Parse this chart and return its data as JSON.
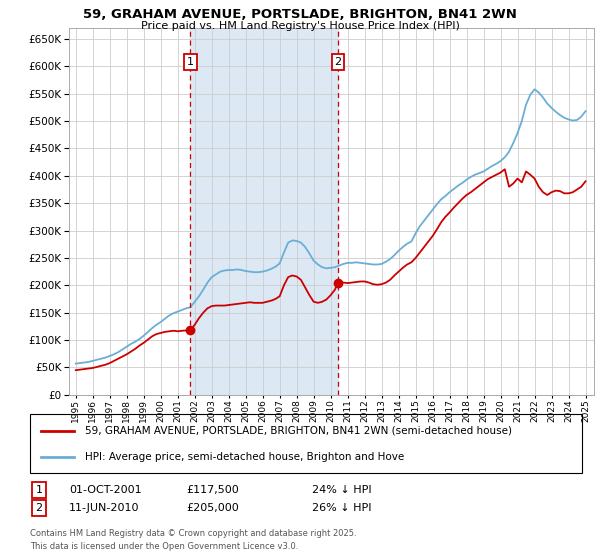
{
  "title1": "59, GRAHAM AVENUE, PORTSLADE, BRIGHTON, BN41 2WN",
  "title2": "Price paid vs. HM Land Registry's House Price Index (HPI)",
  "legend_line1": "59, GRAHAM AVENUE, PORTSLADE, BRIGHTON, BN41 2WN (semi-detached house)",
  "legend_line2": "HPI: Average price, semi-detached house, Brighton and Hove",
  "footnote1": "Contains HM Land Registry data © Crown copyright and database right 2025.",
  "footnote2": "This data is licensed under the Open Government Licence v3.0.",
  "annotation1_label": "1",
  "annotation1_date": "01-OCT-2001",
  "annotation1_price": "£117,500",
  "annotation1_text": "24% ↓ HPI",
  "annotation2_label": "2",
  "annotation2_date": "11-JUN-2010",
  "annotation2_price": "£205,000",
  "annotation2_text": "26% ↓ HPI",
  "vline1_x": 2001.75,
  "vline2_x": 2010.44,
  "marker1_x": 2001.75,
  "marker1_y": 117500,
  "marker2_x": 2010.44,
  "marker2_y": 205000,
  "hpi_color": "#6aaed6",
  "price_color": "#cc0000",
  "vline_color": "#cc0000",
  "span_color": "#dce9f5",
  "plot_bg": "#ffffff",
  "grid_color": "#cccccc",
  "ylim": [
    0,
    670000
  ],
  "yticks": [
    0,
    50000,
    100000,
    150000,
    200000,
    250000,
    300000,
    350000,
    400000,
    450000,
    500000,
    550000,
    600000,
    650000
  ],
  "xlim_left": 1994.6,
  "xlim_right": 2025.5,
  "years_hpi": [
    1995.0,
    1995.25,
    1995.5,
    1995.75,
    1996.0,
    1996.25,
    1996.5,
    1996.75,
    1997.0,
    1997.25,
    1997.5,
    1997.75,
    1998.0,
    1998.25,
    1998.5,
    1998.75,
    1999.0,
    1999.25,
    1999.5,
    1999.75,
    2000.0,
    2000.25,
    2000.5,
    2000.75,
    2001.0,
    2001.25,
    2001.5,
    2001.75,
    2002.0,
    2002.25,
    2002.5,
    2002.75,
    2003.0,
    2003.25,
    2003.5,
    2003.75,
    2004.0,
    2004.25,
    2004.5,
    2004.75,
    2005.0,
    2005.25,
    2005.5,
    2005.75,
    2006.0,
    2006.25,
    2006.5,
    2006.75,
    2007.0,
    2007.25,
    2007.5,
    2007.75,
    2008.0,
    2008.25,
    2008.5,
    2008.75,
    2009.0,
    2009.25,
    2009.5,
    2009.75,
    2010.0,
    2010.25,
    2010.5,
    2010.75,
    2011.0,
    2011.25,
    2011.5,
    2011.75,
    2012.0,
    2012.25,
    2012.5,
    2012.75,
    2013.0,
    2013.25,
    2013.5,
    2013.75,
    2014.0,
    2014.25,
    2014.5,
    2014.75,
    2015.0,
    2015.25,
    2015.5,
    2015.75,
    2016.0,
    2016.25,
    2016.5,
    2016.75,
    2017.0,
    2017.25,
    2017.5,
    2017.75,
    2018.0,
    2018.25,
    2018.5,
    2018.75,
    2019.0,
    2019.25,
    2019.5,
    2019.75,
    2020.0,
    2020.25,
    2020.5,
    2020.75,
    2021.0,
    2021.25,
    2021.5,
    2021.75,
    2022.0,
    2022.25,
    2022.5,
    2022.75,
    2023.0,
    2023.25,
    2023.5,
    2023.75,
    2024.0,
    2024.25,
    2024.5,
    2024.75,
    2025.0
  ],
  "hpi_values": [
    57000,
    58000,
    59000,
    60000,
    62000,
    64000,
    66000,
    68000,
    71000,
    74000,
    78000,
    83000,
    88000,
    93000,
    97000,
    102000,
    108000,
    115000,
    122000,
    128000,
    133000,
    139000,
    145000,
    149000,
    152000,
    155000,
    158000,
    160000,
    170000,
    180000,
    192000,
    205000,
    215000,
    220000,
    225000,
    227000,
    228000,
    228000,
    229000,
    228000,
    226000,
    225000,
    224000,
    224000,
    225000,
    227000,
    230000,
    234000,
    240000,
    260000,
    278000,
    282000,
    281000,
    278000,
    270000,
    258000,
    245000,
    238000,
    233000,
    231000,
    232000,
    233000,
    236000,
    239000,
    241000,
    241000,
    242000,
    241000,
    240000,
    239000,
    238000,
    238000,
    239000,
    243000,
    248000,
    255000,
    263000,
    270000,
    276000,
    280000,
    295000,
    308000,
    318000,
    328000,
    338000,
    348000,
    357000,
    363000,
    370000,
    376000,
    382000,
    387000,
    393000,
    398000,
    402000,
    405000,
    408000,
    413000,
    418000,
    422000,
    427000,
    434000,
    444000,
    460000,
    478000,
    500000,
    530000,
    548000,
    558000,
    552000,
    543000,
    532000,
    524000,
    517000,
    511000,
    506000,
    503000,
    501000,
    502000,
    508000,
    518000
  ],
  "years_price": [
    1995.0,
    1995.25,
    1995.5,
    1995.75,
    1996.0,
    1996.25,
    1996.5,
    1996.75,
    1997.0,
    1997.25,
    1997.5,
    1997.75,
    1998.0,
    1998.25,
    1998.5,
    1998.75,
    1999.0,
    1999.25,
    1999.5,
    1999.75,
    2000.0,
    2000.25,
    2000.5,
    2000.75,
    2001.0,
    2001.25,
    2001.5,
    2001.75,
    2002.0,
    2002.25,
    2002.5,
    2002.75,
    2003.0,
    2003.25,
    2003.5,
    2003.75,
    2004.0,
    2004.25,
    2004.5,
    2004.75,
    2005.0,
    2005.25,
    2005.5,
    2005.75,
    2006.0,
    2006.25,
    2006.5,
    2006.75,
    2007.0,
    2007.25,
    2007.5,
    2007.75,
    2008.0,
    2008.25,
    2008.5,
    2008.75,
    2009.0,
    2009.25,
    2009.5,
    2009.75,
    2010.0,
    2010.25,
    2010.44,
    2010.75,
    2011.0,
    2011.25,
    2011.5,
    2011.75,
    2012.0,
    2012.25,
    2012.5,
    2012.75,
    2013.0,
    2013.25,
    2013.5,
    2013.75,
    2014.0,
    2014.25,
    2014.5,
    2014.75,
    2015.0,
    2015.25,
    2015.5,
    2015.75,
    2016.0,
    2016.25,
    2016.5,
    2016.75,
    2017.0,
    2017.25,
    2017.5,
    2017.75,
    2018.0,
    2018.25,
    2018.5,
    2018.75,
    2019.0,
    2019.25,
    2019.5,
    2019.75,
    2020.0,
    2020.25,
    2020.5,
    2020.75,
    2021.0,
    2021.25,
    2021.5,
    2021.75,
    2022.0,
    2022.25,
    2022.5,
    2022.75,
    2023.0,
    2023.25,
    2023.5,
    2023.75,
    2024.0,
    2024.25,
    2024.5,
    2024.75,
    2025.0
  ],
  "price_values": [
    45000,
    46000,
    47000,
    48000,
    49000,
    51000,
    53000,
    55000,
    58000,
    62000,
    66000,
    70000,
    74000,
    79000,
    84000,
    90000,
    95000,
    101000,
    107000,
    111000,
    113000,
    115000,
    116000,
    117000,
    116000,
    117000,
    117500,
    117500,
    128000,
    140000,
    150000,
    158000,
    162000,
    163000,
    163000,
    163000,
    164000,
    165000,
    166000,
    167000,
    168000,
    169000,
    168000,
    168000,
    168000,
    170000,
    172000,
    175000,
    180000,
    200000,
    215000,
    218000,
    216000,
    210000,
    196000,
    182000,
    170000,
    168000,
    170000,
    174000,
    182000,
    192000,
    205000,
    205000,
    204000,
    205000,
    206000,
    207000,
    207000,
    205000,
    202000,
    201000,
    202000,
    205000,
    210000,
    218000,
    225000,
    232000,
    238000,
    242000,
    250000,
    260000,
    270000,
    280000,
    290000,
    302000,
    315000,
    325000,
    333000,
    342000,
    350000,
    358000,
    365000,
    370000,
    376000,
    382000,
    388000,
    394000,
    398000,
    402000,
    406000,
    412000,
    380000,
    386000,
    395000,
    388000,
    408000,
    402000,
    395000,
    380000,
    370000,
    365000,
    370000,
    373000,
    372000,
    368000,
    368000,
    370000,
    375000,
    380000,
    390000
  ]
}
